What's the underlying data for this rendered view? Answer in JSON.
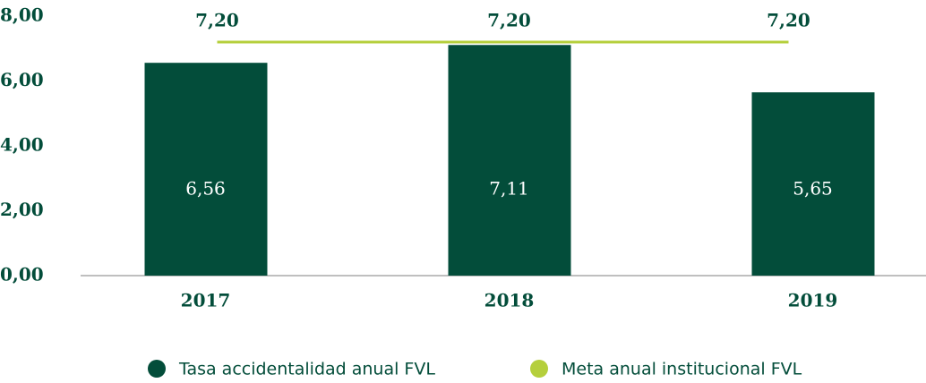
{
  "chart_data": {
    "type": "bar",
    "categories": [
      "2017",
      "2018",
      "2019"
    ],
    "series": [
      {
        "name": "Tasa accidentalidad anual FVL",
        "color": "#034d3a",
        "type": "bar",
        "values": [
          6.56,
          7.11,
          5.65
        ],
        "value_labels": [
          "6,56",
          "7,11",
          "5,65"
        ]
      },
      {
        "name": "Meta anual institucional FVL",
        "color": "#b5cf3c",
        "type": "line",
        "values": [
          7.2,
          7.2,
          7.2
        ],
        "value_labels": [
          "7,20",
          "7,20",
          "7,20"
        ]
      }
    ],
    "ylim": [
      0,
      8
    ],
    "yticks": [
      {
        "value": 0,
        "label": "0,00"
      },
      {
        "value": 2,
        "label": "2,00"
      },
      {
        "value": 4,
        "label": "4,00"
      },
      {
        "value": 6,
        "label": "6,00"
      },
      {
        "value": 8,
        "label": "8,00"
      }
    ],
    "legend": "bottom"
  }
}
